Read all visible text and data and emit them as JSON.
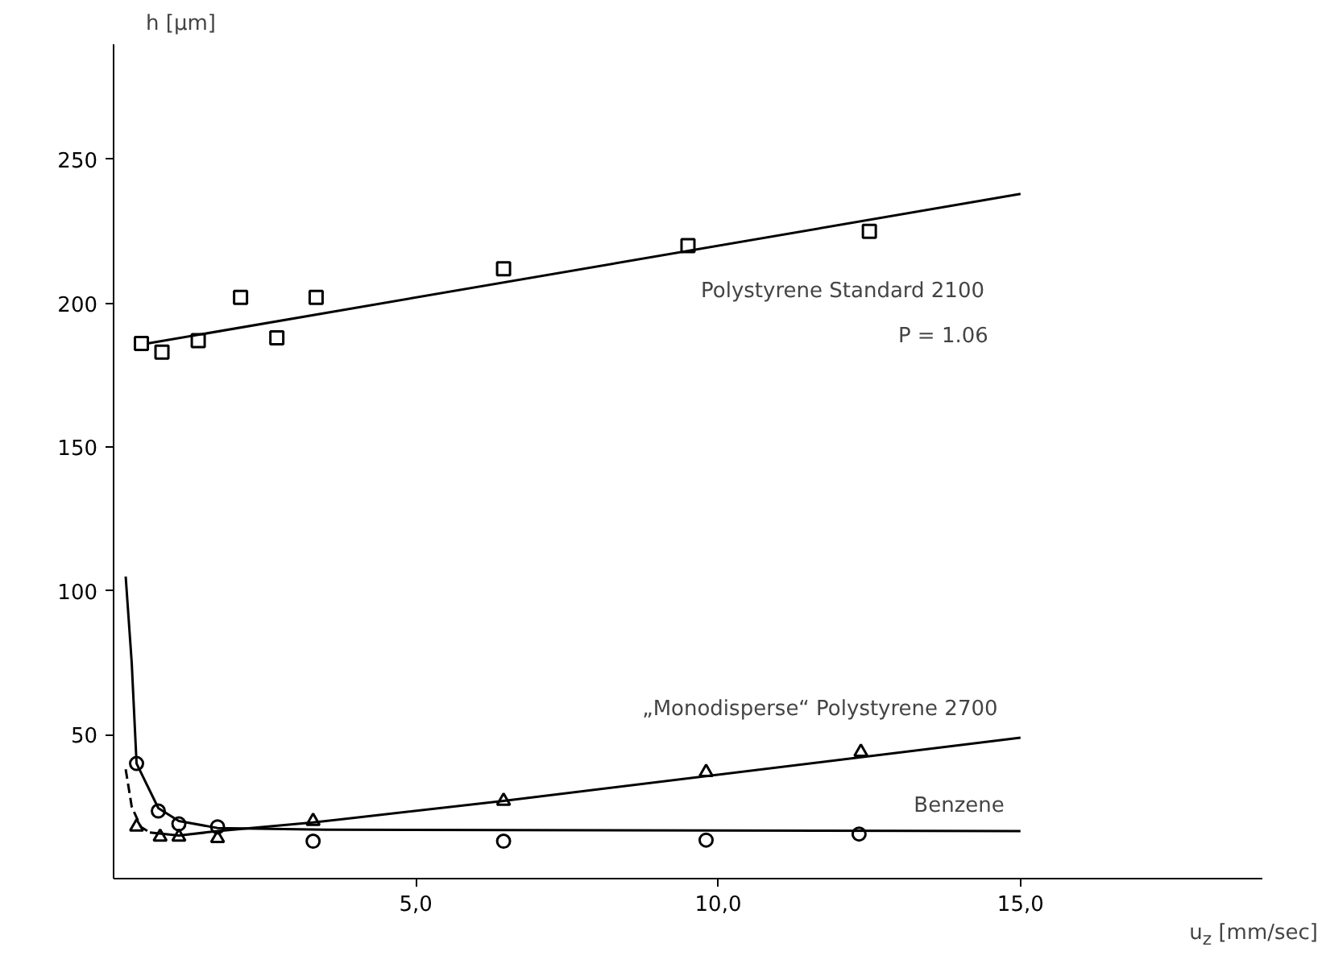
{
  "chart_data": {
    "type": "scatter",
    "xlabel": "u$_{z}$ [mm/sec]",
    "ylabel": "h [µm]",
    "xlim": [
      0,
      19
    ],
    "ylim": [
      0,
      290
    ],
    "xticks": [
      {
        "value": 5,
        "label": "5,0"
      },
      {
        "value": 10,
        "label": "10,0"
      },
      {
        "value": 15,
        "label": "15,0"
      }
    ],
    "yticks": [
      50,
      100,
      150,
      200,
      250
    ],
    "grid": false,
    "series": [
      {
        "marker": "square",
        "color": "#000000",
        "x": [
          0.46,
          0.8,
          1.4,
          2.1,
          2.7,
          3.35,
          6.45,
          9.5,
          12.5
        ],
        "values": [
          186,
          183,
          187,
          202,
          188,
          202,
          212,
          220,
          225
        ]
      },
      {
        "type": "line",
        "name": "Polystyrene Standard    2100",
        "marker": "none",
        "color": "#000000",
        "x": [
          0.56,
          15
        ],
        "values": [
          186,
          238
        ]
      },
      {
        "marker": "circle",
        "color": "#000000",
        "x": [
          0.38,
          0.74,
          1.08,
          1.72,
          3.3,
          6.45,
          9.8,
          12.33
        ],
        "values": [
          40,
          23.5,
          19,
          18,
          13,
          13,
          13.4,
          15.5
        ]
      },
      {
        "type": "line",
        "name": "Benzene",
        "marker": "none",
        "color": "#000000",
        "x": [
          0.2,
          0.3,
          0.38,
          0.74,
          1.08,
          1.72,
          3.5,
          15
        ],
        "values": [
          105,
          75,
          40,
          24.5,
          20,
          17.6,
          17,
          16.5
        ]
      },
      {
        "marker": "triangle",
        "color": "#000000",
        "x": [
          0.38,
          0.77,
          1.08,
          1.72,
          3.3,
          6.45,
          9.8,
          12.36
        ],
        "values": [
          18,
          14.5,
          14.5,
          14,
          20,
          27,
          37,
          44
        ]
      },
      {
        "type": "line",
        "marker": "none",
        "line_style": "dashed",
        "color": "#000000",
        "x": [
          0.2,
          0.3,
          0.45,
          0.6
        ],
        "values": [
          38,
          25,
          18,
          16
        ]
      },
      {
        "type": "line",
        "name": "„Monodisperse“  Polystyrene 2700",
        "marker": "none",
        "color": "#000000",
        "x": [
          0.6,
          1.08,
          1.72,
          3.3,
          6.45,
          15
        ],
        "values": [
          16,
          15,
          16.5,
          19.5,
          27,
          49
        ]
      }
    ],
    "annotations": [
      "P = 1.06"
    ]
  }
}
